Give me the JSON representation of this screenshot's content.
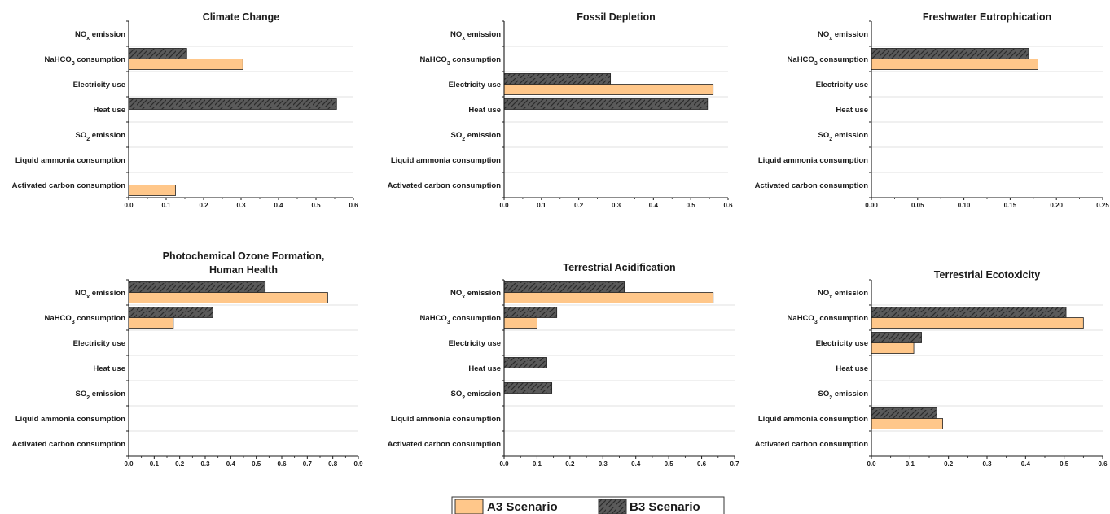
{
  "colors": {
    "a3": "#FFC78A",
    "b3": "#5A5A5A",
    "axis": "#1a1a1a",
    "grid": "#d9d9d9"
  },
  "legend": {
    "a3_label": "A3 Scenario",
    "b3_label": "B3 Scenario"
  },
  "chart_data": [
    {
      "type": "bar",
      "title": [
        "Climate Change"
      ],
      "categories": [
        [
          "NO",
          "x",
          " emission"
        ],
        [
          "NaHCO",
          "3",
          " consumption"
        ],
        [
          "Electricity use"
        ],
        [
          "Heat use"
        ],
        [
          "SO",
          "2",
          " emission"
        ],
        [
          "Liquid ammonia consumption"
        ],
        [
          "Activated carbon consumption"
        ]
      ],
      "xlim": [
        0,
        0.6
      ],
      "ticks": [
        "0.0",
        "0.1",
        "0.2",
        "0.3",
        "0.4",
        "0.5",
        "0.6"
      ],
      "series": [
        {
          "name": "A3 Scenario",
          "values": [
            0,
            0.305,
            0,
            0,
            0,
            0,
            0.125
          ]
        },
        {
          "name": "B3 Scenario",
          "values": [
            0,
            0.155,
            0,
            0.555,
            0,
            0,
            0
          ]
        }
      ]
    },
    {
      "type": "bar",
      "title": [
        "Fossil Depletion"
      ],
      "categories": [
        [
          "NO",
          "x",
          " emission"
        ],
        [
          "NaHCO",
          "3",
          " consumption"
        ],
        [
          "Electricity use"
        ],
        [
          "Heat use"
        ],
        [
          "SO",
          "2",
          " emission"
        ],
        [
          "Liquid ammonia consumption"
        ],
        [
          "Activated carbon consumption"
        ]
      ],
      "xlim": [
        0,
        0.6
      ],
      "ticks": [
        "0.0",
        "0.1",
        "0.2",
        "0.3",
        "0.4",
        "0.5",
        "0.6"
      ],
      "series": [
        {
          "name": "A3 Scenario",
          "values": [
            0,
            0,
            0.56,
            0,
            0,
            0,
            0
          ]
        },
        {
          "name": "B3 Scenario",
          "values": [
            0,
            0,
            0.285,
            0.545,
            0,
            0,
            0
          ]
        }
      ]
    },
    {
      "type": "bar",
      "title": [
        "Freshwater Eutrophication"
      ],
      "categories": [
        [
          "NO",
          "x",
          " emission"
        ],
        [
          "NaHCO",
          "3",
          " consumption"
        ],
        [
          "Electricity use"
        ],
        [
          "Heat use"
        ],
        [
          "SO",
          "2",
          " emission"
        ],
        [
          "Liquid ammonia consumption"
        ],
        [
          "Activated carbon consumption"
        ]
      ],
      "xlim": [
        0,
        0.25
      ],
      "ticks": [
        "0.00",
        "0.05",
        "0.10",
        "0.15",
        "0.20",
        "0.25"
      ],
      "series": [
        {
          "name": "A3 Scenario",
          "values": [
            0,
            0.18,
            0,
            0,
            0,
            0,
            0
          ]
        },
        {
          "name": "B3 Scenario",
          "values": [
            0,
            0.17,
            0,
            0,
            0,
            0,
            0
          ]
        }
      ]
    },
    {
      "type": "bar",
      "title": [
        "Photochemical Ozone Formation,",
        "Human Health"
      ],
      "categories": [
        [
          "NO",
          "x",
          " emission"
        ],
        [
          "NaHCO",
          "3",
          " consumption"
        ],
        [
          "Electricity use"
        ],
        [
          "Heat use"
        ],
        [
          "SO",
          "2",
          " emission"
        ],
        [
          "Liquid ammonia consumption"
        ],
        [
          "Activated carbon consumption"
        ]
      ],
      "xlim": [
        0,
        0.9
      ],
      "ticks": [
        "0.0",
        "0.1",
        "0.2",
        "0.3",
        "0.4",
        "0.5",
        "0.6",
        "0.7",
        "0.8",
        "0.9"
      ],
      "series": [
        {
          "name": "A3 Scenario",
          "values": [
            0.78,
            0.175,
            0,
            0,
            0,
            0,
            0
          ]
        },
        {
          "name": "B3 Scenario",
          "values": [
            0.535,
            0.33,
            0,
            0,
            0,
            0,
            0
          ]
        }
      ]
    },
    {
      "type": "bar",
      "title": [
        "Terrestrial Acidification"
      ],
      "categories": [
        [
          "NO",
          "x",
          " emission"
        ],
        [
          "NaHCO",
          "3",
          " consumption"
        ],
        [
          "Electricity use"
        ],
        [
          "Heat use"
        ],
        [
          "SO",
          "2",
          " emission"
        ],
        [
          "Liquid ammonia consumption"
        ],
        [
          "Activated carbon consumption"
        ]
      ],
      "xlim": [
        0,
        0.7
      ],
      "ticks": [
        "0.0",
        "0.1",
        "0.2",
        "0.3",
        "0.4",
        "0.5",
        "0.6",
        "0.7"
      ],
      "series": [
        {
          "name": "A3 Scenario",
          "values": [
            0.635,
            0.1,
            0,
            0,
            0,
            0,
            0
          ]
        },
        {
          "name": "B3 Scenario",
          "values": [
            0.365,
            0.16,
            0,
            0.13,
            0.145,
            0,
            0
          ]
        }
      ]
    },
    {
      "type": "bar",
      "title": [
        "Terrestrial Ecotoxicity"
      ],
      "categories": [
        [
          "NO",
          "x",
          " emission"
        ],
        [
          "NaHCO",
          "3",
          " consumption"
        ],
        [
          "Electricity use"
        ],
        [
          "Heat use"
        ],
        [
          "SO",
          "2",
          " emission"
        ],
        [
          "Liquid ammonia consumption"
        ],
        [
          "Activated carbon consumption"
        ]
      ],
      "xlim": [
        0,
        0.6
      ],
      "ticks": [
        "0.0",
        "0.1",
        "0.2",
        "0.3",
        "0.4",
        "0.5",
        "0.6"
      ],
      "series": [
        {
          "name": "A3 Scenario",
          "values": [
            0,
            0.55,
            0.11,
            0,
            0,
            0.185,
            0
          ]
        },
        {
          "name": "B3 Scenario",
          "values": [
            0,
            0.505,
            0.13,
            0,
            0,
            0.17,
            0
          ]
        }
      ]
    }
  ]
}
